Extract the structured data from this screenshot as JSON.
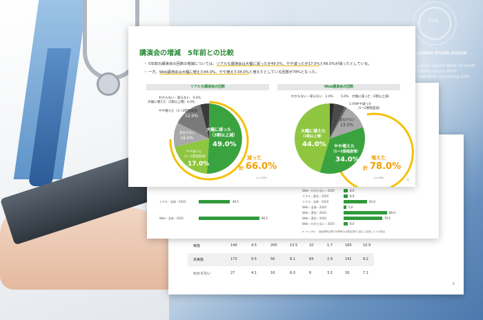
{
  "background": {
    "lorem_title": "LOREM IPSUM DOLOR",
    "lorem_lines": [
      "Lorem ipsum dolor sit amet",
      "Lorem ipsum dolor",
      "sed diam nonummy nibh"
    ],
    "ring_label": "25%"
  },
  "slide1": {
    "title": "講演会の増減　5年前との比較",
    "bullets": [
      {
        "pre": "・ 5年前の講演会の回数の増減については、",
        "hl": "リアルな講演会は大幅に減ったが49.0%、やや減ったが17.0%",
        "post": "と66.0%が減ったとしている。"
      },
      {
        "pre": "・ 一方、",
        "hl": "Web講演会は大幅に増えた44.0%、やや増えた34.0%",
        "post": "と増えたとしている回答が78%となった。"
      }
    ],
    "left": {
      "header": "リアルな講演会の回数",
      "labels": [
        "わからない・知らない　0.0%",
        "大幅に増えた（3割以上増）4.0%",
        "やや増えた（1〜2割程度増）",
        "12.0%",
        "変化がない",
        "18.0%",
        "やや減った",
        "（1〜2割程度減）",
        "17.0%",
        "大幅に減った",
        "（3割以上減）",
        "49.0%"
      ],
      "summary_prefix": "減った",
      "summary_kei": "計",
      "summary_value": "66.0%",
      "n": "(n=200)"
    },
    "right": {
      "header": "Web講演会の回数",
      "labels": [
        "わからない・知らない　2.0%",
        "5.0%",
        "大幅に減った（3割以上減）",
        "やや減った",
        "（1〜2割程度減）",
        "1.0%",
        "変化がない",
        "13.5%",
        "大幅に増えた",
        "（3割以上増）",
        "44.0%",
        "やや増えた",
        "（1〜2割程度増）",
        "34.0%"
      ],
      "summary_prefix": "増えた",
      "summary_kei": "計",
      "summary_value": "78.0%",
      "n": "(n=200)"
    },
    "page": "5"
  },
  "slide2": {
    "bars_left": [
      {
        "label": "リアル・全体・2020",
        "value": "49.5"
      },
      {
        "label": "Web・全体・2020",
        "value": "96.5"
      }
    ],
    "bars_right": [
      {
        "label": "Web・わからない・2020",
        "value": "8.0"
      },
      {
        "label": "リアル・変化・2020",
        "value": "8.0"
      },
      {
        "label": "リアル・全体・2020",
        "value": "42.0"
      },
      {
        "label": "Web・全体・2020",
        "value": "5.0"
      },
      {
        "label": "Web・変化・2020",
        "value": "80.0"
      },
      {
        "label": "Web・変化・2020",
        "value": "70.5"
      },
      {
        "label": "Web・わからない・2020",
        "value": "8.0"
      }
    ],
    "footnote": "※（n=200）　自転車等企業の対策等の台数拡張を1回以上変更した人の割合"
  },
  "slide3": {
    "rows": [
      {
        "label": "実施",
        "cells": [
          "149",
          "4.5",
          "200",
          "13.5",
          "10",
          "1.7",
          "160",
          "10.9"
        ]
      },
      {
        "label": "未実施",
        "cells": [
          "173",
          "9.5",
          "56",
          "8.1",
          "84",
          "2.9",
          "141",
          "9.2"
        ]
      },
      {
        "label": "わからない",
        "cells": [
          "27",
          "4.1",
          "16",
          "6.0",
          "6",
          "3.2",
          "16",
          "7.1"
        ]
      }
    ],
    "page": "6"
  }
}
